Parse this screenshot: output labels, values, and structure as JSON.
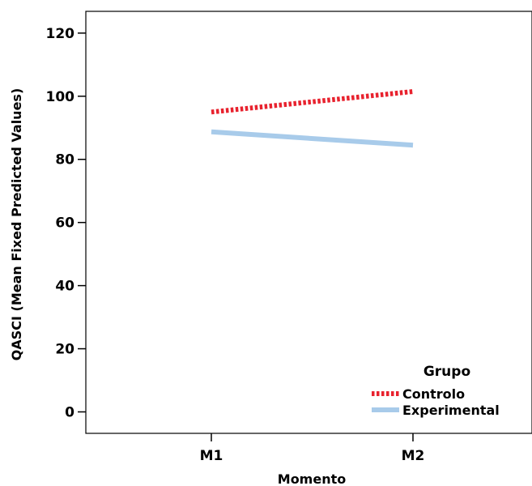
{
  "chart_data": {
    "type": "line",
    "xlabel": "Momento",
    "ylabel": "QASCI (Mean Fixed Predicted Values)",
    "categories": [
      "M1",
      "M2"
    ],
    "ylim": [
      -7,
      125
    ],
    "yticks": [
      0,
      20,
      40,
      60,
      80,
      100,
      120
    ],
    "grid": false,
    "legend": {
      "title": "Grupo",
      "placement": "bottom-right"
    },
    "series": [
      {
        "name": "Controlo",
        "values": [
          95.0,
          101.5
        ],
        "color": "#e8222e",
        "style": "dotted"
      },
      {
        "name": "Experimental",
        "values": [
          88.7,
          84.5
        ],
        "color": "#a8cbea",
        "style": "solid"
      }
    ]
  }
}
